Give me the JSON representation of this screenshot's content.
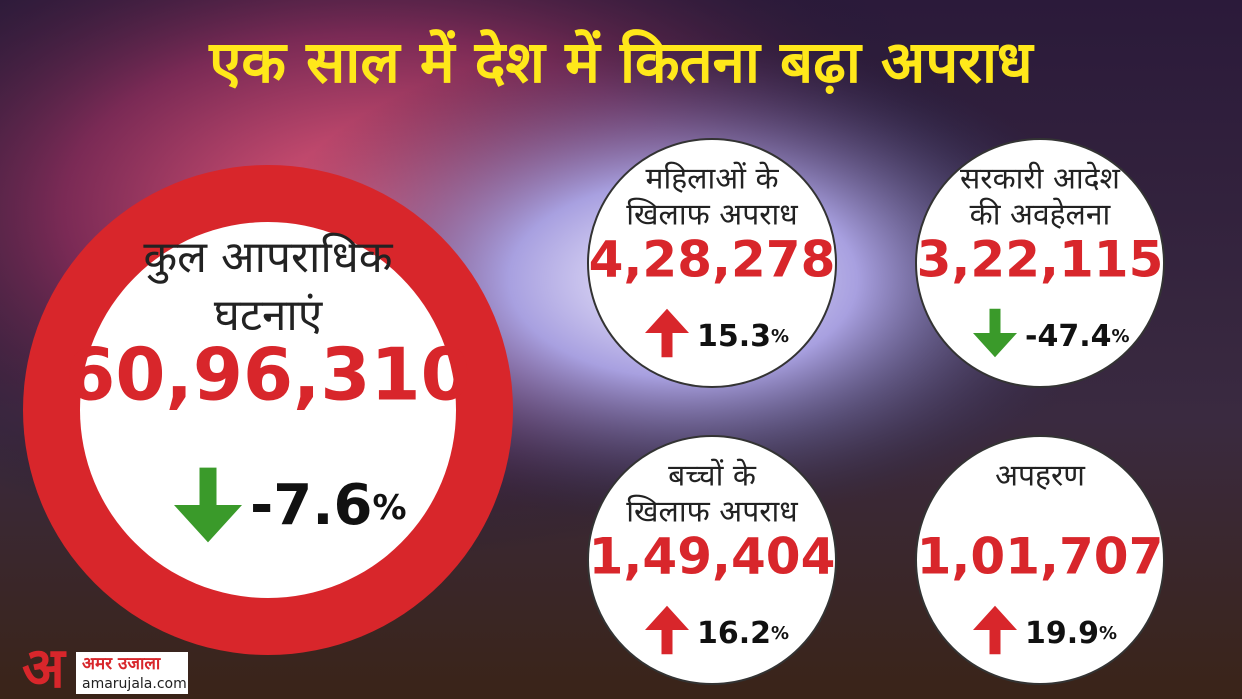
{
  "header": {
    "title": "एक साल में देश में कितना बढ़ा अपराध"
  },
  "main": {
    "label": [
      "कुल आपराधिक",
      "घटनाएं"
    ],
    "value": "60,96,310",
    "change": {
      "value": "-7.6",
      "unit": "%"
    },
    "direction": "down"
  },
  "cards": [
    {
      "label": [
        "महिलाओं के",
        "खिलाफ अपराध"
      ],
      "value": "4,28,278",
      "change": {
        "value": "15.3",
        "unit": "%"
      },
      "direction": "up"
    },
    {
      "label": [
        "सरकारी आदेश",
        "की अवहेलना"
      ],
      "value": "3,22,115",
      "change": {
        "value": "-47.4",
        "unit": "%"
      },
      "direction": "down"
    },
    {
      "label": [
        "बच्चों के",
        "खिलाफ अपराध"
      ],
      "value": "1,49,404",
      "change": {
        "value": "16.2",
        "unit": "%"
      },
      "direction": "up"
    },
    {
      "label": [
        "अपहरण"
      ],
      "value": "1,01,707",
      "change": {
        "value": "19.9",
        "unit": "%"
      },
      "direction": "up"
    }
  ],
  "logo": {
    "mark": "अ",
    "name": "अमर उजाला",
    "url": "amarujala.com"
  }
}
